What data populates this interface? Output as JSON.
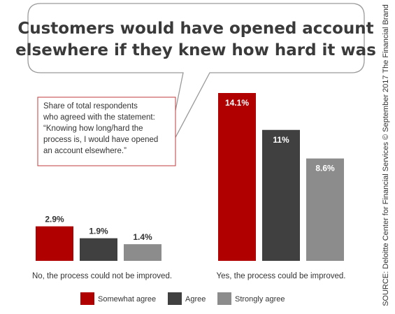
{
  "chart_data": {
    "type": "bar",
    "title_lines": [
      "Customers would have opened account",
      "elsewhere if they knew how hard it was"
    ],
    "annotation_lines": [
      "Share of total respondents",
      "who agreed with the statement:",
      "“Knowing how long/hard the",
      "process is, I would have opened",
      "an account elsewhere.”"
    ],
    "categories": [
      "No, the process could not be improved.",
      "Yes, the process could be improved."
    ],
    "series": [
      {
        "name": "Somewhat agree",
        "values": [
          2.9,
          14.1
        ],
        "labels": [
          "2.9%",
          "14.1%"
        ],
        "color": "#b00000"
      },
      {
        "name": "Agree",
        "values": [
          1.9,
          11
        ],
        "labels": [
          "1.9%",
          "11%"
        ],
        "color": "#404040"
      },
      {
        "name": "Strongly agree",
        "values": [
          1.4,
          8.6
        ],
        "labels": [
          "1.4%",
          "8.6%"
        ],
        "color": "#8c8c8c"
      }
    ],
    "ylim": [
      0,
      14.1
    ],
    "grid": false,
    "legend_position": "bottom"
  },
  "source": "SOURCE: Deloitte Center for Financial Services © September 2017 The Financial Brand"
}
